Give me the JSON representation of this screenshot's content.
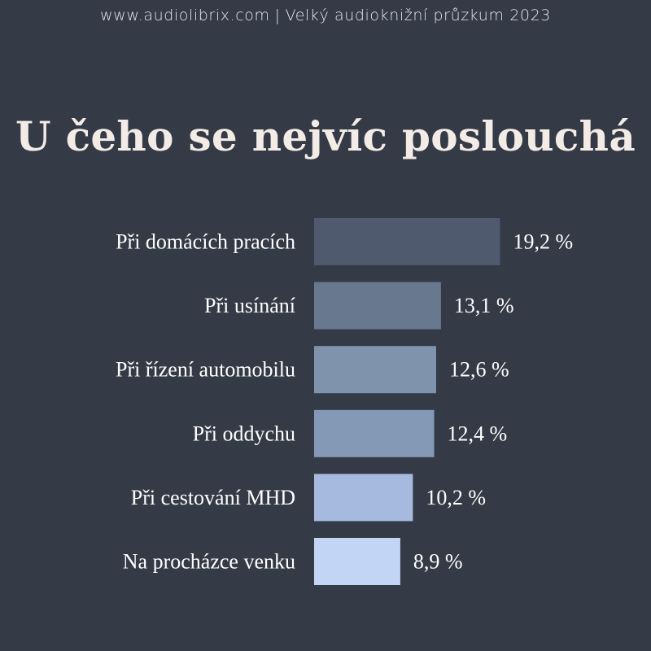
{
  "header": {
    "site": "www.audiolibrix.com",
    "separator": "|",
    "survey": "Velký audioknižní průzkum 2023"
  },
  "chart_data": {
    "type": "bar",
    "orientation": "horizontal",
    "title": "U čeho se nejvíc poslouchá",
    "categories": [
      "Při domácích pracích",
      "Při usínání",
      "Při řízení automobilu",
      "Při oddychu",
      "Při cestování MHD",
      "Na procházce venku"
    ],
    "values": [
      19.2,
      13.1,
      12.6,
      12.4,
      10.2,
      8.9
    ],
    "value_labels": [
      "19,2 %",
      "13,1 %",
      "12,6 %",
      "12,4 %",
      "10,2 %",
      "8,9 %"
    ],
    "bar_colors": [
      "#4f5a6e",
      "#68788f",
      "#7f93ad",
      "#8499b5",
      "#a6bae0",
      "#c2d5f5"
    ],
    "grid": false,
    "legend": "none"
  }
}
